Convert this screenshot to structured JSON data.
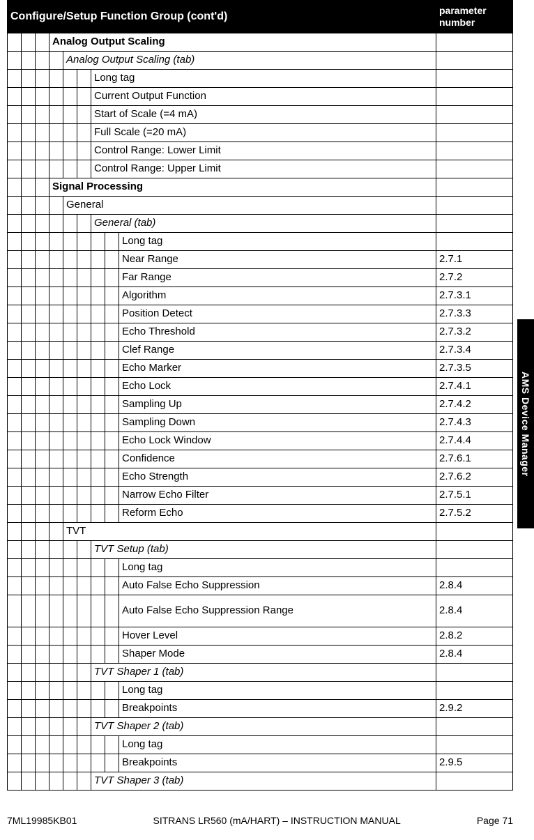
{
  "header": {
    "title": "Configure/Setup Function Group  (cont'd)",
    "param_col": "parameter number"
  },
  "sidetab": "AMS Device Manager",
  "footer": {
    "left": "7ML19985KB01",
    "center": "SITRANS LR560 (mA/HART) – INSTRUCTION MANUAL",
    "right": "Page 71"
  },
  "rows": [
    {
      "indent": 3,
      "label": "Analog Output Scaling",
      "param": "",
      "bold": true
    },
    {
      "indent": 4,
      "label": "Analog Output Scaling (tab)",
      "param": "",
      "italic": true
    },
    {
      "indent": 6,
      "label": "Long tag",
      "param": ""
    },
    {
      "indent": 6,
      "label": "Current Output Function",
      "param": ""
    },
    {
      "indent": 6,
      "label": "Start of Scale (=4 mA)",
      "param": ""
    },
    {
      "indent": 6,
      "label": "Full Scale (=20 mA)",
      "param": ""
    },
    {
      "indent": 6,
      "label": "Control Range: Lower Limit",
      "param": ""
    },
    {
      "indent": 6,
      "label": "Control Range: Upper Limit",
      "param": ""
    },
    {
      "indent": 3,
      "label": "Signal Processing",
      "param": "",
      "bold": true
    },
    {
      "indent": 4,
      "label": "General",
      "param": ""
    },
    {
      "indent": 6,
      "label": "General (tab)",
      "param": "",
      "italic": true
    },
    {
      "indent": 8,
      "label": "Long tag",
      "param": ""
    },
    {
      "indent": 8,
      "label": "Near Range",
      "param": "2.7.1"
    },
    {
      "indent": 8,
      "label": "Far Range",
      "param": "2.7.2"
    },
    {
      "indent": 8,
      "label": "Algorithm",
      "param": "2.7.3.1"
    },
    {
      "indent": 8,
      "label": "Position Detect",
      "param": "2.7.3.3"
    },
    {
      "indent": 8,
      "label": "Echo Threshold",
      "param": "2.7.3.2"
    },
    {
      "indent": 8,
      "label": "Clef Range",
      "param": "2.7.3.4"
    },
    {
      "indent": 8,
      "label": "Echo Marker",
      "param": "2.7.3.5"
    },
    {
      "indent": 8,
      "label": "Echo Lock",
      "param": "2.7.4.1"
    },
    {
      "indent": 8,
      "label": "Sampling Up",
      "param": "2.7.4.2"
    },
    {
      "indent": 8,
      "label": "Sampling Down",
      "param": "2.7.4.3"
    },
    {
      "indent": 8,
      "label": "Echo Lock Window",
      "param": "2.7.4.4"
    },
    {
      "indent": 8,
      "label": "Confidence",
      "param": "2.7.6.1"
    },
    {
      "indent": 8,
      "label": "Echo Strength",
      "param": "2.7.6.2"
    },
    {
      "indent": 8,
      "label": "Narrow Echo Filter",
      "param": "2.7.5.1"
    },
    {
      "indent": 8,
      "label": "Reform Echo",
      "param": "2.7.5.2"
    },
    {
      "indent": 4,
      "label": "TVT",
      "param": ""
    },
    {
      "indent": 6,
      "label": "TVT Setup (tab)",
      "param": "",
      "italic": true
    },
    {
      "indent": 8,
      "label": "Long tag",
      "param": ""
    },
    {
      "indent": 8,
      "label": "Auto False Echo Suppression",
      "param": "2.8.4"
    },
    {
      "indent": 8,
      "label": "Auto False Echo Suppression Range",
      "param": "2.8.4",
      "tall": true
    },
    {
      "indent": 8,
      "label": "Hover Level",
      "param": "2.8.2"
    },
    {
      "indent": 8,
      "label": "Shaper Mode",
      "param": "2.8.4"
    },
    {
      "indent": 6,
      "label": "TVT Shaper 1 (tab)",
      "param": "",
      "italic": true
    },
    {
      "indent": 8,
      "label": "Long tag",
      "param": ""
    },
    {
      "indent": 8,
      "label": "Breakpoints",
      "param": "2.9.2"
    },
    {
      "indent": 6,
      "label": "TVT Shaper 2 (tab)",
      "param": "",
      "italic": true
    },
    {
      "indent": 8,
      "label": "Long tag",
      "param": ""
    },
    {
      "indent": 8,
      "label": "Breakpoints",
      "param": "2.9.5"
    },
    {
      "indent": 6,
      "label": "TVT Shaper 3 (tab)",
      "param": "",
      "italic": true
    }
  ],
  "max_indent": 9
}
